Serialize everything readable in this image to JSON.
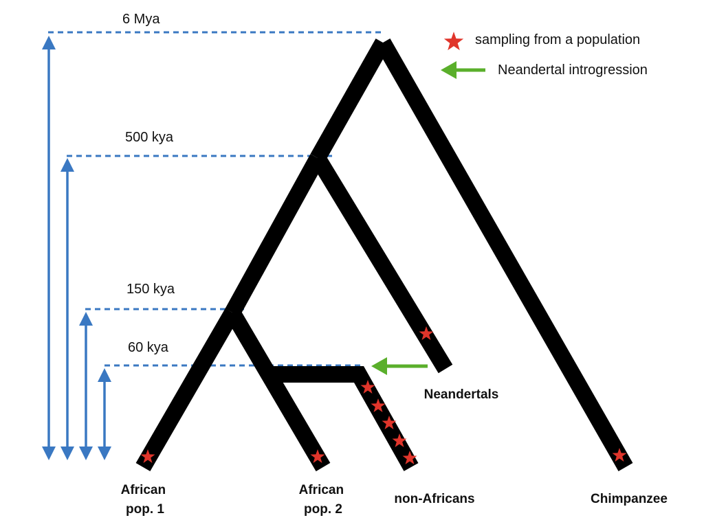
{
  "colors": {
    "branch": "#000000",
    "time_line": "#3a78c2",
    "star": "#e0352b",
    "introgression_arrow": "#5aaf2b"
  },
  "time_markers": {
    "t6mya": "6 Mya",
    "t500kya": "500 kya",
    "t150kya": "150 kya",
    "t60kya": "60 kya"
  },
  "legend": {
    "sampling": {
      "icon": "star-icon",
      "label": "sampling from a population"
    },
    "introgression": {
      "icon": "arrow-left-icon",
      "label": "Neandertal introgression"
    }
  },
  "leaves": {
    "african1": {
      "line1": "African",
      "line2": "pop. 1"
    },
    "african2": {
      "line1": "African",
      "line2": "pop. 2"
    },
    "non_africans": "non-Africans",
    "chimpanzee": "Chimpanzee",
    "neandertals": "Neandertals"
  }
}
